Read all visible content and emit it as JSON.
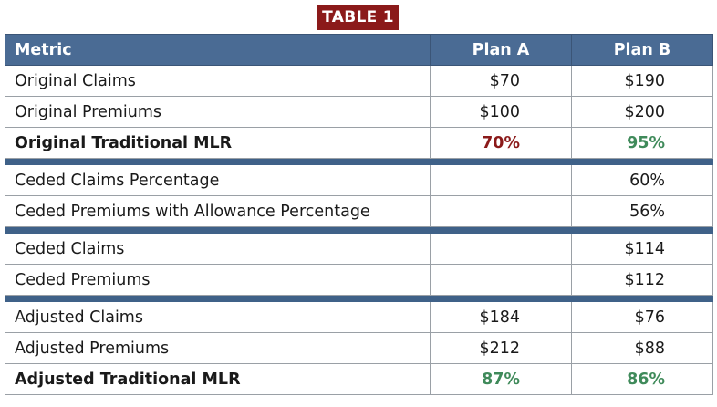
{
  "title": "TABLE 1",
  "columns": {
    "metric": "Metric",
    "plan_a": "Plan A",
    "plan_b": "Plan B"
  },
  "colors": {
    "header_bg": "#4a6b94",
    "label_bg": "#8b1a1a",
    "red_value": "#8b1a1a",
    "green_value": "#3f8a5a"
  },
  "groups": [
    {
      "rows": [
        {
          "label": "Original Claims",
          "a": "$70",
          "b": "$190"
        },
        {
          "label": "Original Premiums",
          "a": "$100",
          "b": "$200"
        },
        {
          "label": "Original Traditional MLR",
          "a": "70%",
          "b": "95%"
        }
      ]
    },
    {
      "rows": [
        {
          "label": "Ceded Claims Percentage",
          "a": "",
          "b": "60%"
        },
        {
          "label": "Ceded Premiums with Allowance Percentage",
          "a": "",
          "b": "56%"
        }
      ]
    },
    {
      "rows": [
        {
          "label": "Ceded Claims",
          "a": "",
          "b": "$114"
        },
        {
          "label": "Ceded Premiums",
          "a": "",
          "b": "$112"
        }
      ]
    },
    {
      "rows": [
        {
          "label": "Adjusted Claims",
          "a": "$184",
          "b": "$76"
        },
        {
          "label": "Adjusted Premiums",
          "a": "$212",
          "b": "$88"
        },
        {
          "label": "Adjusted Traditional MLR",
          "a": "87%",
          "b": "86%"
        }
      ]
    }
  ]
}
